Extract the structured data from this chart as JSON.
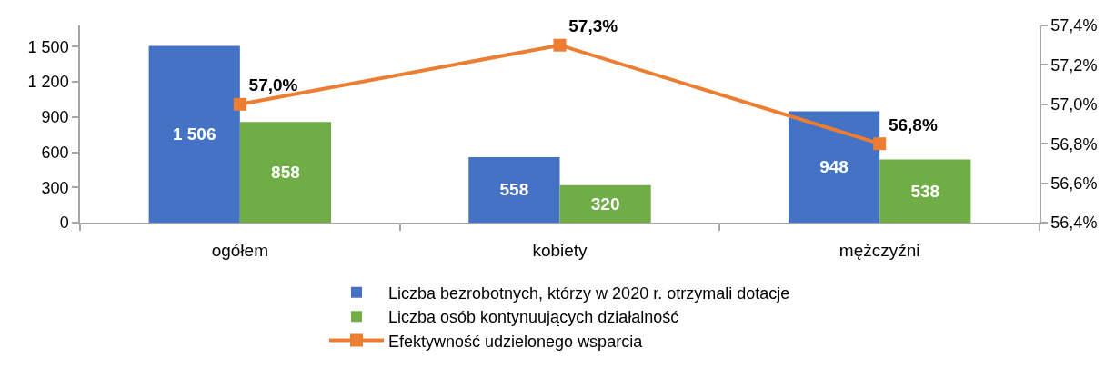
{
  "chart_data": {
    "type": "bar",
    "categories": [
      "ogółem",
      "kobiety",
      "mężczyźni"
    ],
    "series": [
      {
        "name": "Liczba bezrobotnych, którzy w 2020 r. otrzymali dotacje",
        "color": "#4472c4",
        "values": [
          1506,
          558,
          948
        ],
        "value_labels": [
          "1 506",
          "558",
          "948"
        ]
      },
      {
        "name": "Liczba osób kontynuujących działalność",
        "color": "#70ad47",
        "values": [
          858,
          320,
          538
        ],
        "value_labels": [
          "858",
          "320",
          "538"
        ]
      },
      {
        "name": "Efektywność udzielonego wsparcia",
        "type": "line",
        "axis": "y2",
        "color": "#ed7d31",
        "marker": "square",
        "line_style": "solid",
        "values": [
          57.0,
          57.3,
          56.8
        ],
        "value_labels": [
          "57,0%",
          "57,3%",
          "56,8%"
        ]
      }
    ],
    "ylim": [
      0,
      1680
    ],
    "yticks": [
      0,
      300,
      600,
      900,
      {
        "value": 1200,
        "label": "1 200"
      },
      {
        "value": 1500,
        "label": "1 500"
      }
    ],
    "y2lim": [
      56.4,
      57.4
    ],
    "y2ticks": [
      {
        "value": 56.4,
        "label": "56,4%"
      },
      {
        "value": 56.6,
        "label": "56,6%"
      },
      {
        "value": 56.8,
        "label": "56,8%"
      },
      {
        "value": 57.0,
        "label": "57,0%"
      },
      {
        "value": 57.2,
        "label": "57,2%"
      },
      {
        "value": 57.4,
        "label": "57,4%"
      }
    ],
    "legend": "bottom"
  }
}
